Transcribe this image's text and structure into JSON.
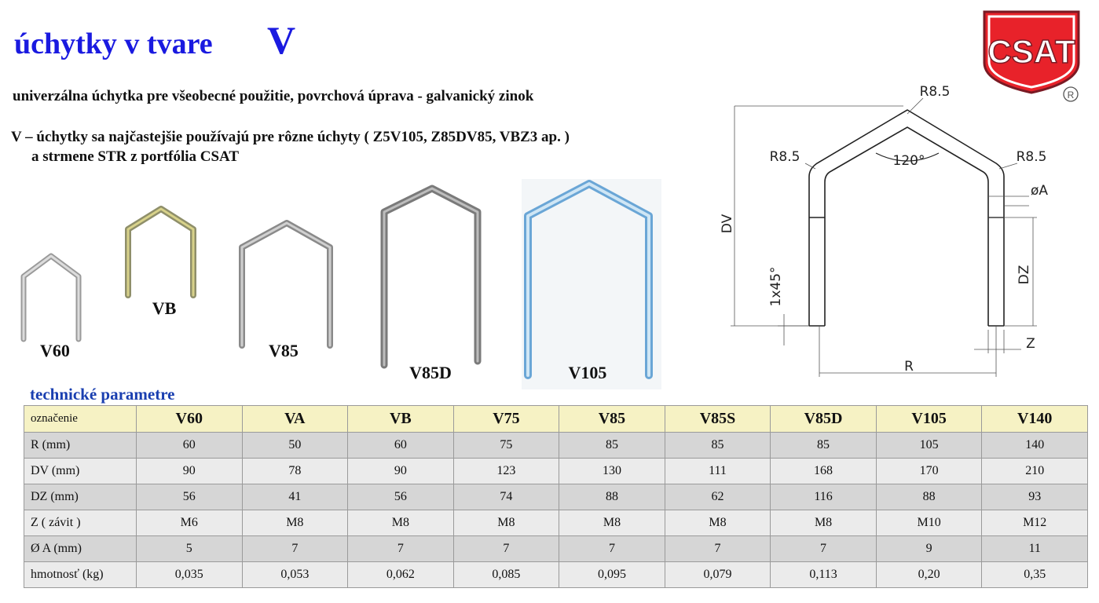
{
  "header": {
    "title": "úchytky v tvare",
    "title_letter": "V"
  },
  "logo": {
    "text": "CSAT",
    "registered": "R"
  },
  "intro": {
    "line1": "univerzálna  úchytka  pre všeobecné použitie,  povrchová úprava -  galvanický zinok",
    "line2": "V – úchytky sa najčastejšie  používajú pre rôzne úchyty   ( Z5V105, Z85DV85, VBZ3 ap.  )",
    "line3": "a  strmene  STR   z portfólia   CSAT"
  },
  "products": [
    {
      "label": "V60"
    },
    {
      "label": "VB"
    },
    {
      "label": "V85"
    },
    {
      "label": "V85D"
    },
    {
      "label": "V105"
    }
  ],
  "diagram": {
    "labels": [
      "R8.5",
      "R8.5",
      "R8.5",
      "120°",
      "øA",
      "DV",
      "DZ",
      "1x45°",
      "Z",
      "R"
    ]
  },
  "table": {
    "title": "technické  parametre",
    "header": [
      "označenie",
      "V60",
      "VA",
      "VB",
      "V75",
      "V85",
      "V85S",
      "V85D",
      "V105",
      "V140"
    ],
    "rows": [
      [
        "R  (mm)",
        "60",
        "50",
        "60",
        "75",
        "85",
        "85",
        "85",
        "105",
        "140"
      ],
      [
        "DV  (mm)",
        "90",
        "78",
        "90",
        "123",
        "130",
        "111",
        "168",
        "170",
        "210"
      ],
      [
        "DZ  (mm)",
        "56",
        "41",
        "56",
        "74",
        "88",
        "62",
        "116",
        "88",
        "93"
      ],
      [
        "Z  ( závit )",
        "M6",
        "M8",
        "M8",
        "M8",
        "M8",
        "M8",
        "M8",
        "M10",
        "M12"
      ],
      [
        "Ø A   (mm)",
        "5",
        "7",
        "7",
        "7",
        "7",
        "7",
        "7",
        "9",
        "11"
      ],
      [
        "hmotnosť (kg)",
        "0,035",
        "0,053",
        "0,062",
        "0,085",
        "0,095",
        "0,079",
        "0,113",
        "0,20",
        "0,35"
      ]
    ]
  }
}
